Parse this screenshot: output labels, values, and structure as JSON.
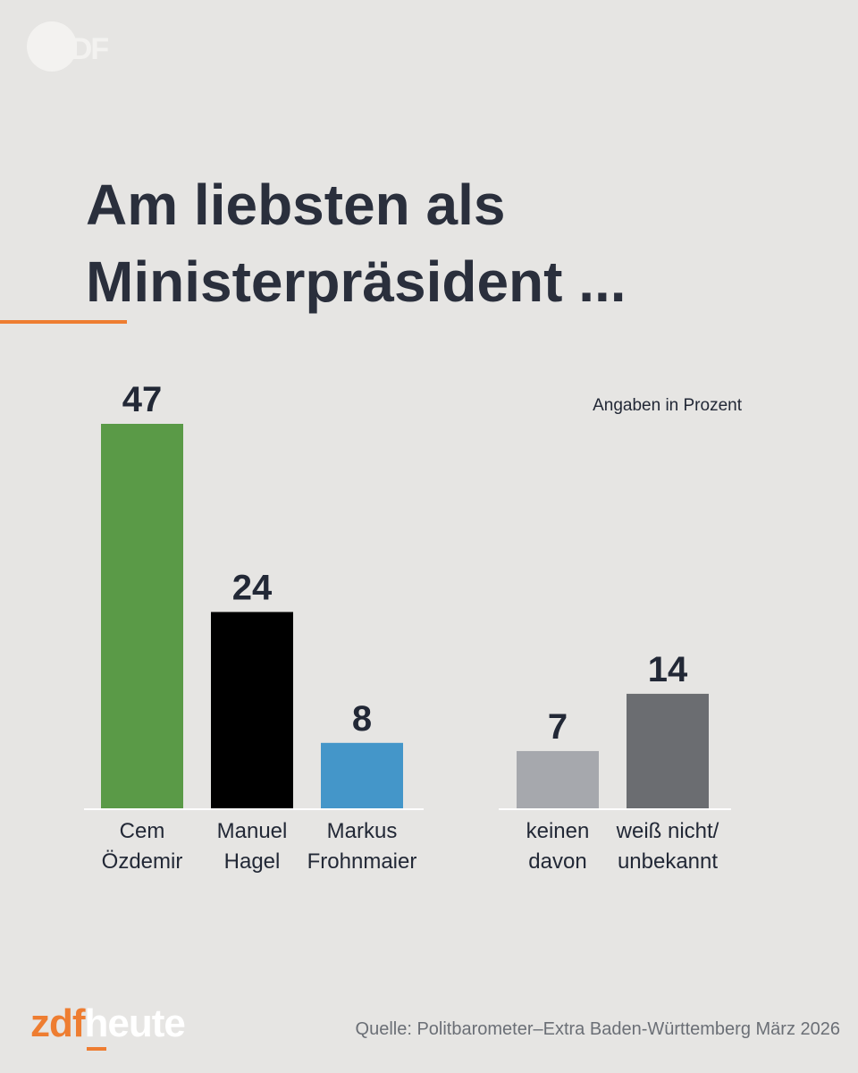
{
  "branding": {
    "top_logo": "ZDF",
    "footer_logo_zdf": "zdf",
    "footer_logo_heute": "heute"
  },
  "header": {
    "title_line1": "Am liebsten als",
    "title_line2": "Ministerpräsident ...",
    "accent_color": "#ee7d31"
  },
  "footer": {
    "source": "Quelle: Politbarometer–Extra Baden-Württemberg März 2026"
  },
  "chart_data": {
    "type": "bar",
    "unit_label": "Angaben in Prozent",
    "ylim": [
      0,
      47
    ],
    "grid": false,
    "groups": [
      {
        "bars": [
          {
            "label_lines": [
              "Cem",
              "Özdemir"
            ],
            "value": 47,
            "color": "#5a9a47"
          },
          {
            "label_lines": [
              "Manuel",
              "Hagel"
            ],
            "value": 24,
            "color": "#000000"
          },
          {
            "label_lines": [
              "Markus",
              "Frohnmaier"
            ],
            "value": 8,
            "color": "#4496c9"
          }
        ]
      },
      {
        "bars": [
          {
            "label_lines": [
              "keinen",
              "davon"
            ],
            "value": 7,
            "color": "#a6a8ad"
          },
          {
            "label_lines": [
              "weiß nicht/",
              "unbekannt"
            ],
            "value": 14,
            "color": "#6b6d71"
          }
        ]
      }
    ]
  }
}
